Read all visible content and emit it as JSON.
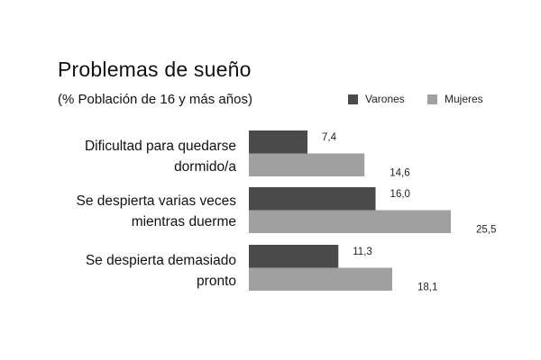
{
  "chart_data": {
    "type": "bar",
    "orientation": "horizontal",
    "title": "Problemas de sueño",
    "subtitle": "(% Población de 16 y más años)",
    "categories": [
      [
        "Dificultad para quedarse",
        "dormido/a"
      ],
      [
        "Se despierta varias veces",
        "mientras duerme"
      ],
      [
        "Se despierta demasiado",
        "pronto"
      ]
    ],
    "series": [
      {
        "name": "Varones",
        "color": "#4a4a4a",
        "values": [
          7.4,
          16.0,
          11.3
        ],
        "labels": [
          "7,4",
          "16,0",
          "11,3"
        ]
      },
      {
        "name": "Mujeres",
        "color": "#a0a0a0",
        "values": [
          14.6,
          25.5,
          18.1
        ],
        "labels": [
          "14,6",
          "25,5",
          "18,1"
        ]
      }
    ],
    "xlim": [
      0,
      25.5
    ],
    "grid": false,
    "legend_position": "top-right"
  }
}
